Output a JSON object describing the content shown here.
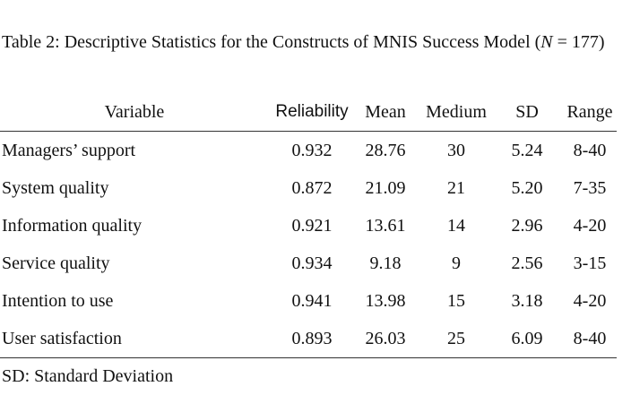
{
  "caption": {
    "before": "Table 2: Descriptive Statistics for the Constructs of MNIS Success Model (",
    "italic": "N",
    "after": " = 177)"
  },
  "table": {
    "header": [
      "Variable",
      "Reliability",
      "Mean",
      "Medium",
      "SD",
      "Range"
    ],
    "rows": [
      [
        "Managers’ support",
        "0.932",
        "28.76",
        "30",
        "5.24",
        "8-40"
      ],
      [
        "System quality",
        "0.872",
        "21.09",
        "21",
        "5.20",
        "7-35"
      ],
      [
        "Information quality",
        "0.921",
        "13.61",
        "14",
        "2.96",
        "4-20"
      ],
      [
        "Service quality",
        "0.934",
        "9.18",
        "9",
        "2.56",
        "3-15"
      ],
      [
        "Intention to use",
        "0.941",
        "13.98",
        "15",
        "3.18",
        "4-20"
      ],
      [
        "User satisfaction",
        "0.893",
        "26.03",
        "25",
        "6.09",
        "8-40"
      ]
    ]
  },
  "footnote": "SD: Standard Deviation"
}
